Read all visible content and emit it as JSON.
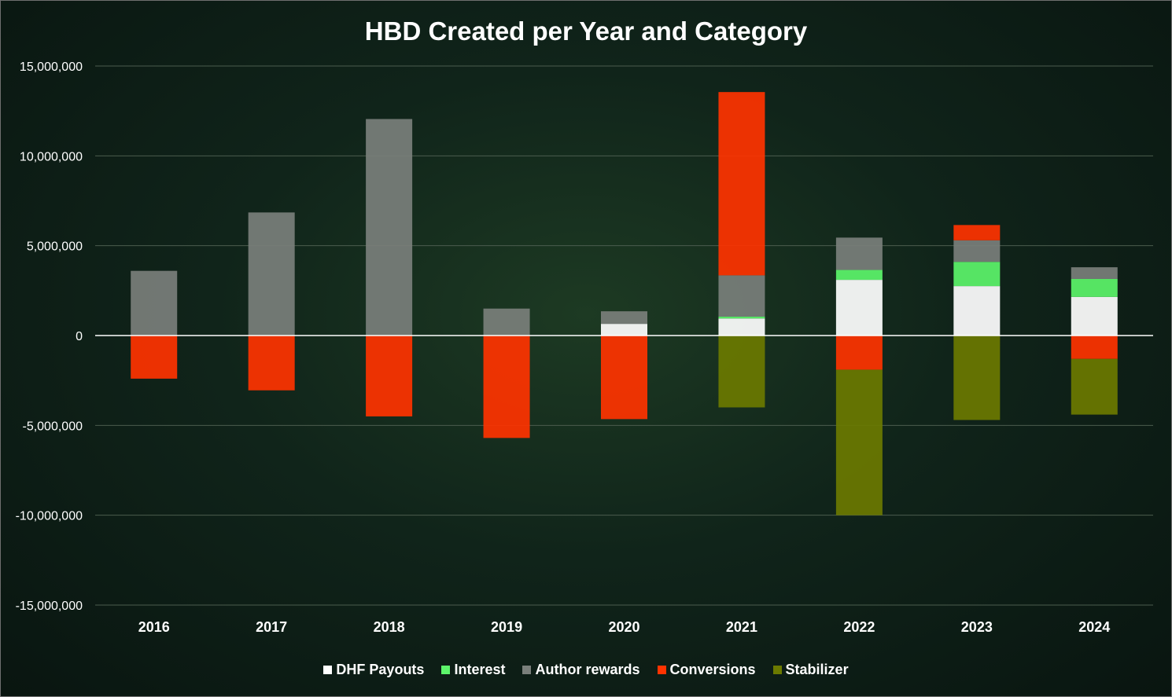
{
  "chart_data": {
    "type": "bar",
    "stacked": true,
    "title": "HBD Created per Year and Category",
    "xlabel": "",
    "ylabel": "",
    "ylim": [
      -15000000,
      15000000
    ],
    "yticks": [
      15000000,
      10000000,
      5000000,
      0,
      -5000000,
      -10000000,
      -15000000
    ],
    "ytick_labels": [
      "15,000,000",
      "10,000,000",
      "5,000,000",
      "0",
      "-5,000,000",
      "-10,000,000",
      "-15,000,000"
    ],
    "categories": [
      "2016",
      "2017",
      "2018",
      "2019",
      "2020",
      "2021",
      "2022",
      "2023",
      "2024"
    ],
    "grid": true,
    "legend_position": "bottom",
    "series": [
      {
        "name": "DHF Payouts",
        "color": "#ffffff",
        "values": [
          0,
          0,
          0,
          0,
          650000,
          950000,
          3100000,
          2750000,
          2150000
        ]
      },
      {
        "name": "Interest",
        "color": "#5cf56a",
        "values": [
          0,
          0,
          0,
          0,
          0,
          100000,
          550000,
          1350000,
          1000000
        ]
      },
      {
        "name": "Author rewards",
        "color": "#7a7f7b",
        "values": [
          3600000,
          6850000,
          12050000,
          1500000,
          700000,
          2300000,
          1800000,
          1200000,
          650000
        ]
      },
      {
        "name": "Conversions",
        "color": "#ff3300",
        "values": [
          -2400000,
          -3050000,
          -4500000,
          -5700000,
          -4650000,
          10200000,
          -1900000,
          850000,
          -1300000
        ]
      },
      {
        "name": "Stabilizer",
        "color": "#6b7a00",
        "values": [
          0,
          0,
          0,
          0,
          0,
          -4000000,
          -8100000,
          -4700000,
          -3100000
        ]
      }
    ]
  }
}
